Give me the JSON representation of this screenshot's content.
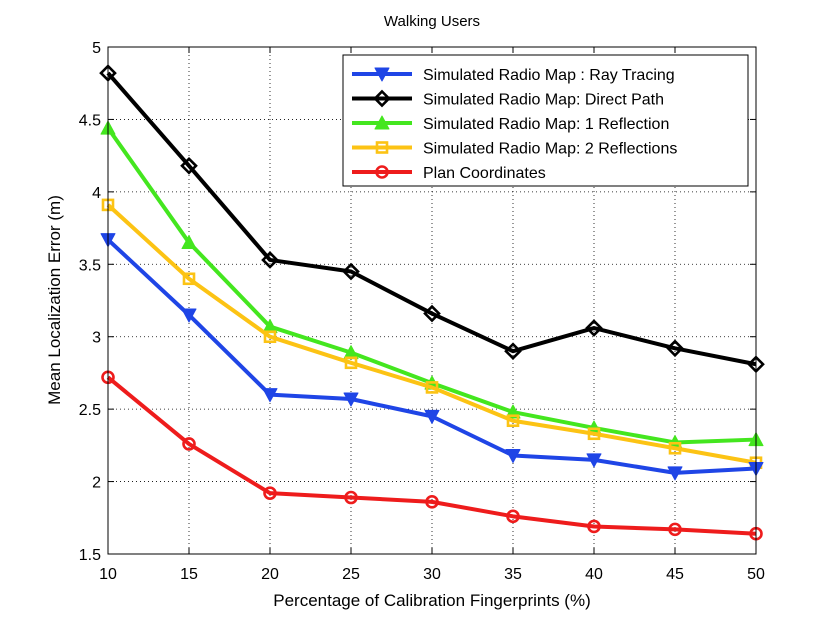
{
  "chart_data": {
    "type": "line",
    "title": "Walking Users",
    "xlabel": "Percentage of Calibration Fingerprints (%)",
    "ylabel": "Mean Localization Error (m)",
    "x": [
      10,
      15,
      20,
      25,
      30,
      35,
      40,
      45,
      50
    ],
    "xlim": [
      10,
      50
    ],
    "ylim": [
      1.5,
      5
    ],
    "xticks": [
      "10",
      "15",
      "20",
      "25",
      "30",
      "35",
      "40",
      "45",
      "50"
    ],
    "yticks": [
      "1.5",
      "2",
      "2.5",
      "3",
      "3.5",
      "4",
      "4.5",
      "5"
    ],
    "grid": true,
    "legend_position": "top-right",
    "series": [
      {
        "name": "Simulated Radio Map : Ray Tracing",
        "color": "#1f45e6",
        "marker": "triangle-down",
        "values": [
          3.67,
          3.15,
          2.6,
          2.57,
          2.45,
          2.18,
          2.15,
          2.06,
          2.09
        ]
      },
      {
        "name": "Simulated Radio Map: Direct Path",
        "color": "#000000",
        "marker": "diamond",
        "values": [
          4.82,
          4.18,
          3.53,
          3.45,
          3.16,
          2.9,
          3.06,
          2.92,
          2.81
        ]
      },
      {
        "name": "Simulated Radio Map: 1 Reflection",
        "color": "#44e61f",
        "marker": "triangle-up",
        "values": [
          4.44,
          3.65,
          3.07,
          2.89,
          2.68,
          2.48,
          2.37,
          2.27,
          2.29
        ]
      },
      {
        "name": "Simulated Radio Map: 2 Reflections",
        "color": "#fcc314",
        "marker": "square",
        "values": [
          3.91,
          3.4,
          3.0,
          2.82,
          2.65,
          2.42,
          2.33,
          2.23,
          2.13
        ]
      },
      {
        "name": "Plan Coordinates",
        "color": "#ee1c1c",
        "marker": "circle",
        "values": [
          2.72,
          2.26,
          1.92,
          1.89,
          1.86,
          1.76,
          1.69,
          1.67,
          1.64
        ]
      }
    ]
  }
}
